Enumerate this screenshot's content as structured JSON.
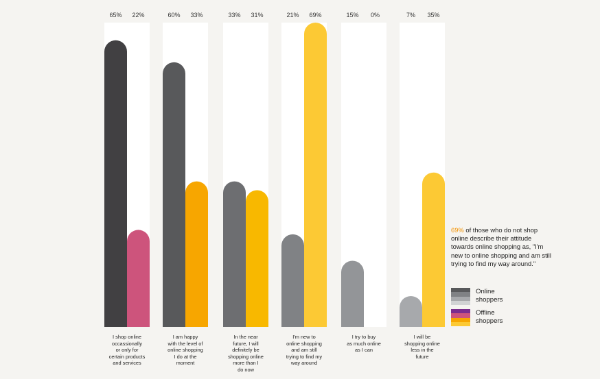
{
  "chart_data": {
    "type": "bar",
    "ylim": [
      0,
      69
    ],
    "categories": [
      "I shop online occassionally or only for certain products and services",
      "I am happy with the level of online shopping I do at the moment",
      "In the near future, I will definitely be shopping online more than I do now",
      "I'm new to online shopping and am still trying to find my way around",
      "I try to buy as much online as I can",
      "I will be shopping online less in the future"
    ],
    "category_lines": [
      [
        "I shop online",
        "occassionally",
        "or only for",
        "certain products",
        "and services"
      ],
      [
        "I am happy",
        "with the level of",
        "online shopping",
        "I do at the",
        "moment"
      ],
      [
        "In the near",
        "future, I will",
        "definitely be",
        "shopping online",
        "more than I",
        "do now"
      ],
      [
        "I'm new to",
        "online shopping",
        "and am still",
        "trying to find my",
        "way around"
      ],
      [
        "I try to buy",
        "as much online",
        "as I can"
      ],
      [
        "I will be",
        "shopping online",
        "less in the",
        "future"
      ]
    ],
    "series": [
      {
        "name": "Online shoppers",
        "values": [
          65,
          60,
          33,
          21,
          15,
          7
        ],
        "labels": [
          "65%",
          "60%",
          "33%",
          "21%",
          "15%",
          "7%"
        ]
      },
      {
        "name": "Offline shoppers",
        "values": [
          22,
          33,
          31,
          69,
          0,
          35
        ],
        "labels": [
          "22%",
          "33%",
          "31%",
          "69%",
          "0%",
          "35%"
        ]
      }
    ],
    "colors": {
      "online": [
        "#414042",
        "#58595b",
        "#6d6e71",
        "#808285",
        "#939598",
        "#a7a9ac"
      ],
      "offline": [
        "#cd547c",
        "#f7a600",
        "#f8b800",
        "#fcc934",
        "#fcc934",
        "#fcc934"
      ],
      "column_background": "#ffffff"
    }
  },
  "callout": {
    "highlight": "69%",
    "text": " of those who do not shop online describe their attitude towards online shopping as, \"I'm new to online shopping and am still trying to find my way around.\""
  },
  "legend": [
    {
      "lines": [
        "Online",
        "shoppers"
      ],
      "colors": [
        "#58595b",
        "#808285",
        "#a7a9ac",
        "#d1d3d4"
      ]
    },
    {
      "lines": [
        "Offline",
        "shoppers"
      ],
      "colors": [
        "#7b2d8e",
        "#cd547c",
        "#f7a600",
        "#fcc934"
      ]
    }
  ]
}
